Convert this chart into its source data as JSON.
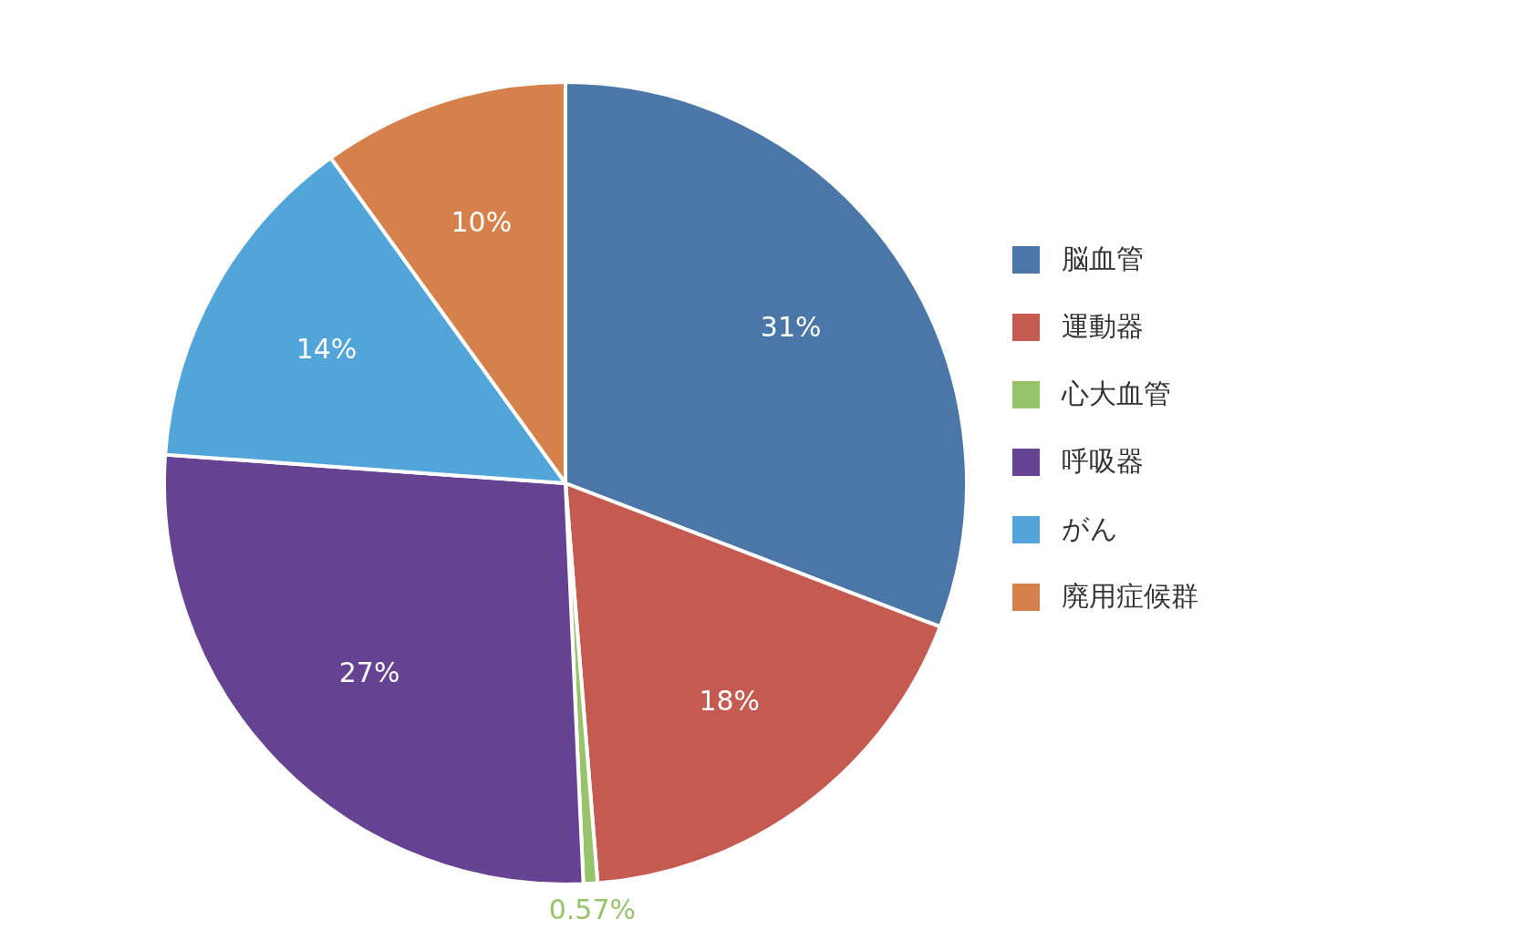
{
  "chart_data": {
    "type": "pie",
    "categories": [
      "脳血管",
      "運動器",
      "心大血管",
      "呼吸器",
      "がん",
      "廃用症候群"
    ],
    "values": [
      31,
      18,
      0.57,
      27,
      14,
      10
    ],
    "colors": [
      "#4a76a8",
      "#c55a50",
      "#97c46a",
      "#654392",
      "#52a5d8",
      "#d6804b"
    ],
    "value_labels": [
      "31%",
      "18%",
      "0.57%",
      "27%",
      "14%",
      "10%"
    ],
    "legend": "right"
  }
}
